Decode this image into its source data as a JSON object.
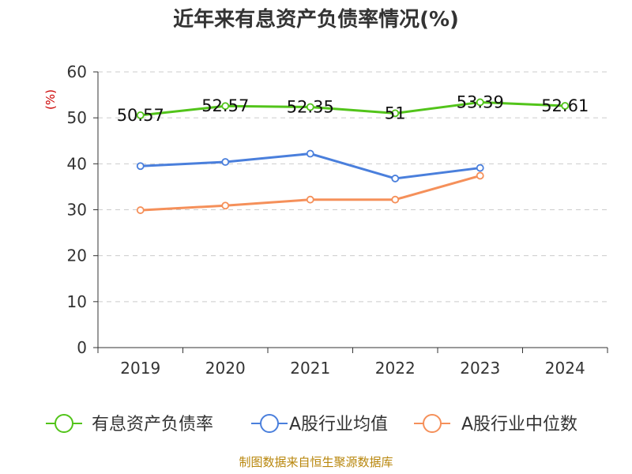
{
  "chart_data": {
    "type": "line",
    "title": "近年来有息资产负债率情况(%)",
    "ylabel": "(%)",
    "xlabel": "",
    "categories": [
      "2019",
      "2020",
      "2021",
      "2022",
      "2023",
      "2024"
    ],
    "ylim": [
      0,
      60
    ],
    "yticks": [
      0,
      10,
      20,
      30,
      40,
      50,
      60
    ],
    "grid": true,
    "legend_position": "bottom",
    "series": [
      {
        "name": "有息资产负债率",
        "color": "#52c41a",
        "values": [
          50.57,
          52.57,
          52.35,
          51,
          53.39,
          52.61
        ],
        "labels": [
          "50.57",
          "52.57",
          "52.35",
          "51",
          "53.39",
          "52.61"
        ]
      },
      {
        "name": "A股行业均值",
        "color": "#4a7fdc",
        "values": [
          39.5,
          40.4,
          42.2,
          36.8,
          39.1,
          null
        ],
        "labels": null
      },
      {
        "name": "A股行业中位数",
        "color": "#f5905a",
        "values": [
          29.9,
          30.9,
          32.2,
          32.2,
          37.4,
          null
        ],
        "labels": null
      }
    ]
  },
  "footer": {
    "source": "制图数据来自恒生聚源数据库"
  }
}
